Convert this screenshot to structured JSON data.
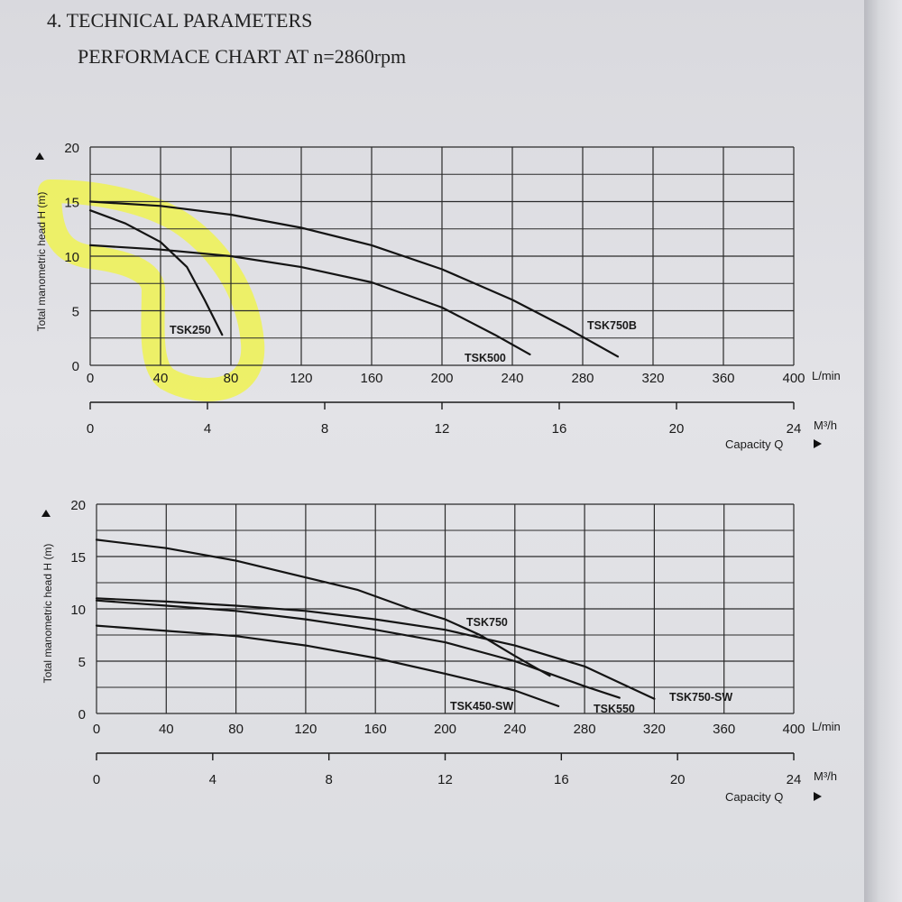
{
  "header": {
    "section": "4. TECHNICAL PARAMETERS",
    "subtitle": "PERFORMACE CHART AT n=2860rpm"
  },
  "highlight_color": "#eef25a",
  "chart_data": [
    {
      "type": "line",
      "ylabel": "Total manometric head H (m)",
      "xlabel": "Capacity Q",
      "x_unit": "L/min",
      "x2_unit": "M³/h",
      "ylim": [
        0,
        20
      ],
      "xlim": [
        0,
        400
      ],
      "y_ticks": [
        "0",
        "5",
        "10",
        "15",
        "20"
      ],
      "x_ticks": [
        "0",
        "40",
        "80",
        "120",
        "160",
        "200",
        "240",
        "280",
        "320",
        "360",
        "400"
      ],
      "x2_ticks": [
        "0",
        "4",
        "8",
        "12",
        "16",
        "20",
        "24"
      ],
      "grid": true,
      "series": [
        {
          "name": "TSK250",
          "x": [
            0,
            20,
            40,
            55,
            65,
            75
          ],
          "y": [
            14.2,
            13.0,
            11.3,
            9.0,
            6.0,
            2.8
          ]
        },
        {
          "name": "TSK500",
          "x": [
            0,
            40,
            80,
            120,
            160,
            200,
            230,
            250
          ],
          "y": [
            11.0,
            10.6,
            10.0,
            9.0,
            7.6,
            5.3,
            2.8,
            1.0
          ]
        },
        {
          "name": "TSK750B",
          "x": [
            0,
            40,
            80,
            120,
            160,
            200,
            240,
            270,
            300
          ],
          "y": [
            15.0,
            14.6,
            13.8,
            12.6,
            11.0,
            8.8,
            6.0,
            3.5,
            0.8
          ]
        }
      ]
    },
    {
      "type": "line",
      "ylabel": "Total manometric head H (m)",
      "xlabel": "Capacity Q",
      "x_unit": "L/min",
      "x2_unit": "M³/h",
      "ylim": [
        0,
        20
      ],
      "xlim": [
        0,
        400
      ],
      "y_ticks": [
        "0",
        "5",
        "10",
        "15",
        "20"
      ],
      "x_ticks": [
        "0",
        "40",
        "80",
        "120",
        "160",
        "200",
        "240",
        "280",
        "320",
        "360",
        "400"
      ],
      "x2_ticks": [
        "0",
        "4",
        "8",
        "12",
        "16",
        "20",
        "24"
      ],
      "grid": true,
      "series": [
        {
          "name": "TSK750",
          "x": [
            0,
            40,
            80,
            120,
            150,
            180,
            200,
            220,
            240,
            260
          ],
          "y": [
            16.6,
            15.8,
            14.6,
            13.0,
            11.8,
            10.0,
            9.0,
            7.5,
            5.5,
            3.6
          ]
        },
        {
          "name": "TSK450-SW",
          "x": [
            0,
            40,
            80,
            120,
            160,
            200,
            240,
            265
          ],
          "y": [
            8.4,
            7.9,
            7.4,
            6.5,
            5.3,
            3.8,
            2.2,
            0.7
          ]
        },
        {
          "name": "TSK550",
          "x": [
            0,
            40,
            80,
            120,
            160,
            200,
            240,
            280,
            300
          ],
          "y": [
            10.8,
            10.3,
            9.8,
            9.0,
            8.0,
            6.8,
            5.0,
            2.6,
            1.5
          ]
        },
        {
          "name": "TSK750-SW",
          "x": [
            0,
            40,
            80,
            120,
            160,
            200,
            240,
            280,
            320
          ],
          "y": [
            11.0,
            10.7,
            10.3,
            9.8,
            9.0,
            8.0,
            6.5,
            4.5,
            1.4
          ]
        }
      ]
    }
  ]
}
